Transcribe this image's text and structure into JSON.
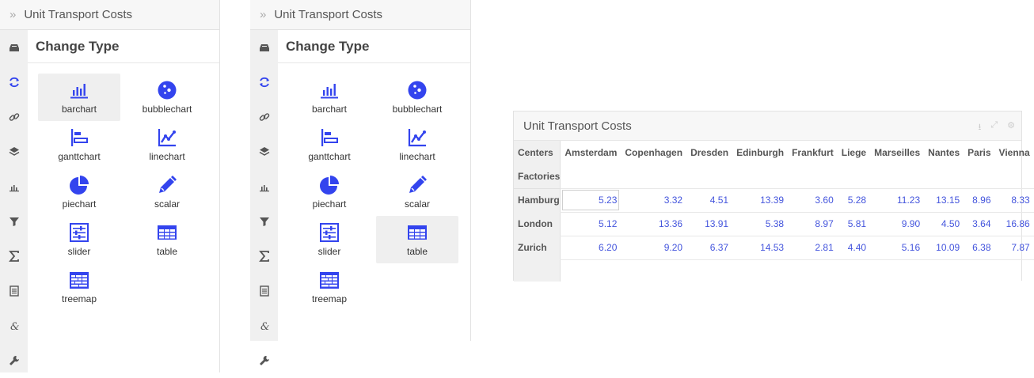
{
  "panels": [
    {
      "title": "Unit Transport Costs",
      "section_title": "Change Type",
      "selected": "barchart"
    },
    {
      "title": "Unit Transport Costs",
      "section_title": "Change Type",
      "selected": "table"
    }
  ],
  "chart_types": [
    {
      "id": "barchart",
      "label": "barchart",
      "icon": "barchart-icon"
    },
    {
      "id": "bubblechart",
      "label": "bubblechart",
      "icon": "bubblechart-icon"
    },
    {
      "id": "ganttchart",
      "label": "ganttchart",
      "icon": "ganttchart-icon"
    },
    {
      "id": "linechart",
      "label": "linechart",
      "icon": "linechart-icon"
    },
    {
      "id": "piechart",
      "label": "piechart",
      "icon": "piechart-icon"
    },
    {
      "id": "scalar",
      "label": "scalar",
      "icon": "pencil-icon"
    },
    {
      "id": "slider",
      "label": "slider",
      "icon": "slider-icon"
    },
    {
      "id": "table",
      "label": "table",
      "icon": "table-icon"
    },
    {
      "id": "treemap",
      "label": "treemap",
      "icon": "treemap-icon"
    }
  ],
  "rail_icons": [
    "inbox-icon",
    "refresh-icon",
    "link-icon",
    "layers-icon",
    "chart-icon",
    "filter-icon",
    "sigma-icon",
    "document-icon",
    "ampersand-icon",
    "wrench-icon"
  ],
  "widget": {
    "title": "Unit Transport Costs",
    "corner_labels": [
      "Centers",
      "Factories"
    ],
    "columns": [
      "Amsterdam",
      "Copenhagen",
      "Dresden",
      "Edinburgh",
      "Frankfurt",
      "Liege",
      "Marseilles",
      "Nantes",
      "Paris",
      "Vienna"
    ],
    "rows": [
      {
        "label": "Hamburg",
        "values": [
          "5.23",
          "3.32",
          "4.51",
          "13.39",
          "3.60",
          "5.28",
          "11.23",
          "13.15",
          "8.96",
          "8.33"
        ]
      },
      {
        "label": "London",
        "values": [
          "5.12",
          "13.36",
          "13.91",
          "5.38",
          "8.97",
          "5.81",
          "9.90",
          "4.50",
          "3.64",
          "16.86"
        ]
      },
      {
        "label": "Zurich",
        "values": [
          "6.20",
          "9.20",
          "6.37",
          "14.53",
          "2.81",
          "4.40",
          "5.16",
          "10.09",
          "6.38",
          "7.87"
        ]
      }
    ]
  },
  "colors": {
    "accent": "#3344ee",
    "value_text": "#4455dd"
  }
}
